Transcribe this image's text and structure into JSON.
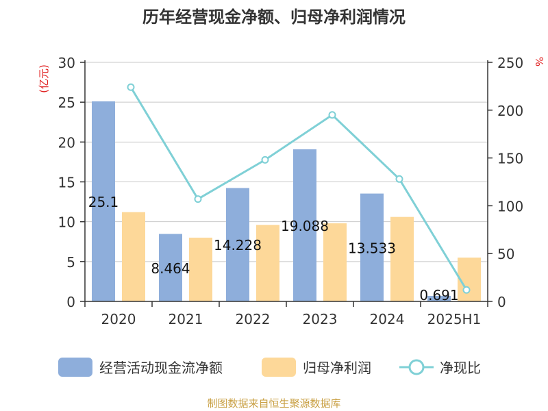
{
  "title": "历年经营现金净额、归母净利润情况",
  "source": "制图数据来自恒生聚源数据库",
  "chart_data": {
    "type": "bar",
    "categories": [
      "2020",
      "2021",
      "2022",
      "2023",
      "2024",
      "2025H1"
    ],
    "left_axis": {
      "unit": "(亿元)",
      "ylim": [
        0,
        30
      ],
      "ticks": [
        "0",
        "5",
        "10",
        "15",
        "20",
        "25",
        "30"
      ]
    },
    "right_axis": {
      "unit": "%",
      "ylim": [
        0,
        250
      ],
      "ticks": [
        "0",
        "50",
        "100",
        "150",
        "200",
        "250"
      ]
    },
    "series": [
      {
        "name": "经营活动现金流净额",
        "kind": "bar",
        "axis": "left",
        "color": "#8eaedb",
        "values": [
          25.1,
          8.464,
          14.228,
          19.088,
          13.533,
          0.691
        ],
        "labels": [
          "25.1",
          "8.464",
          "14.228",
          "19.088",
          "13.533",
          "0.691"
        ]
      },
      {
        "name": "归母净利润",
        "kind": "bar",
        "axis": "left",
        "color": "#fdd899",
        "values": [
          11.2,
          8.0,
          9.6,
          9.8,
          10.6,
          5.5
        ]
      },
      {
        "name": "净现比",
        "kind": "line",
        "axis": "right",
        "color": "#7fd0d6",
        "values": [
          224,
          107,
          148,
          195,
          128,
          12
        ]
      }
    ],
    "grid": true,
    "legend_position": "bottom"
  }
}
